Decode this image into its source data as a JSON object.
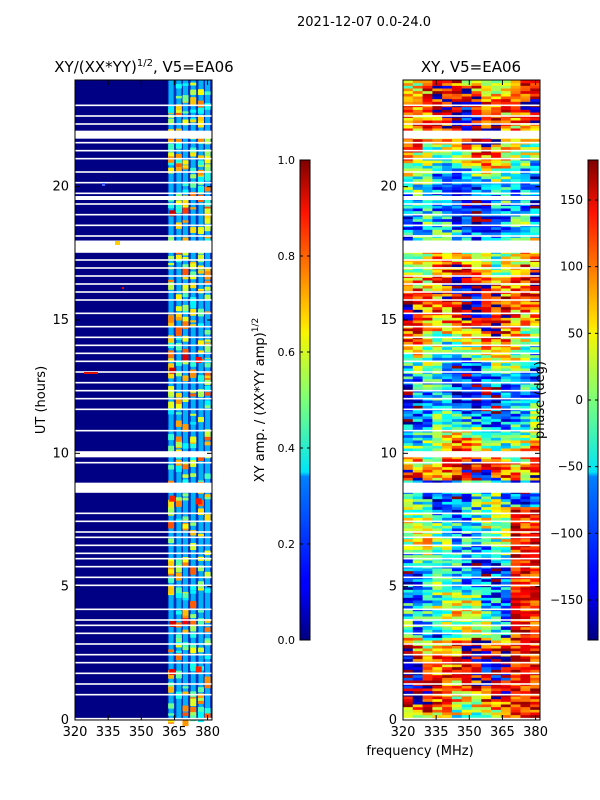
{
  "suptitle": "2021-12-07 0.0-24.0",
  "chart_data": [
    {
      "type": "heatmap",
      "id": "amp",
      "title": "XY/(XX*YY)",
      "title_sup": "1/2",
      "title_suffix": ", V5=EA06",
      "xlabel": "",
      "ylabel": "UT (hours)",
      "xlim": [
        320,
        382
      ],
      "ylim": [
        0,
        24
      ],
      "xticks": [
        320,
        335,
        350,
        365,
        380
      ],
      "yticks": [
        0,
        5,
        10,
        15,
        20
      ],
      "colormap": "jet",
      "colorbar": {
        "label": "XY amp. / (XX*YY amp)",
        "label_sup": "1/2",
        "range": [
          0.0,
          1.0
        ],
        "ticks": [
          "0.0",
          "0.2",
          "0.4",
          "0.6",
          "0.8",
          "1.0"
        ],
        "tick_values": [
          0.0,
          0.2,
          0.4,
          0.6,
          0.8,
          1.0
        ]
      }
    },
    {
      "type": "heatmap",
      "id": "phase",
      "title": "XY, V5=EA06",
      "xlabel": "frequency (MHz)",
      "ylabel": "",
      "xlim": [
        320,
        382
      ],
      "ylim": [
        0,
        24
      ],
      "xticks": [
        320,
        335,
        350,
        365,
        380
      ],
      "yticks": [
        0,
        5,
        10,
        15,
        20
      ],
      "colormap": "jet",
      "colorbar": {
        "label": "phase (deg)",
        "range": [
          -180,
          180
        ],
        "ticks": [
          "150",
          "100",
          "50",
          "0",
          "−50",
          "−100",
          "−150"
        ],
        "tick_values": [
          150,
          100,
          50,
          0,
          -50,
          -100,
          -150
        ]
      }
    }
  ],
  "flagged_rows_ut": [
    0.05,
    0.95,
    1.35,
    1.75,
    2.15,
    2.45,
    2.85,
    3.25,
    3.55,
    3.75,
    4.15,
    5.05,
    5.35,
    5.75,
    6.05,
    6.25,
    6.55,
    6.85,
    7.05,
    7.45,
    7.75,
    8.55,
    8.7,
    8.85,
    9.65,
    9.9,
    10.05,
    10.85,
    11.65,
    12.05,
    12.35,
    12.65,
    13.05,
    13.45,
    13.75,
    14.05,
    14.35,
    14.75,
    15.25,
    15.75,
    16.05,
    16.35,
    16.65,
    16.95,
    17.25,
    17.55,
    17.65,
    17.8,
    17.95,
    18.15,
    18.55,
    18.95,
    19.35,
    19.55,
    19.6,
    19.75,
    20.15,
    20.55,
    21.05,
    21.35,
    21.65,
    21.85,
    22.05,
    22.35,
    22.65,
    23.05
  ],
  "flagged_bands_ut": [
    [
      8.55,
      8.9
    ],
    [
      9.85,
      10.05
    ],
    [
      17.55,
      17.95
    ],
    [
      19.5,
      19.65
    ],
    [
      21.8,
      22.1
    ]
  ]
}
